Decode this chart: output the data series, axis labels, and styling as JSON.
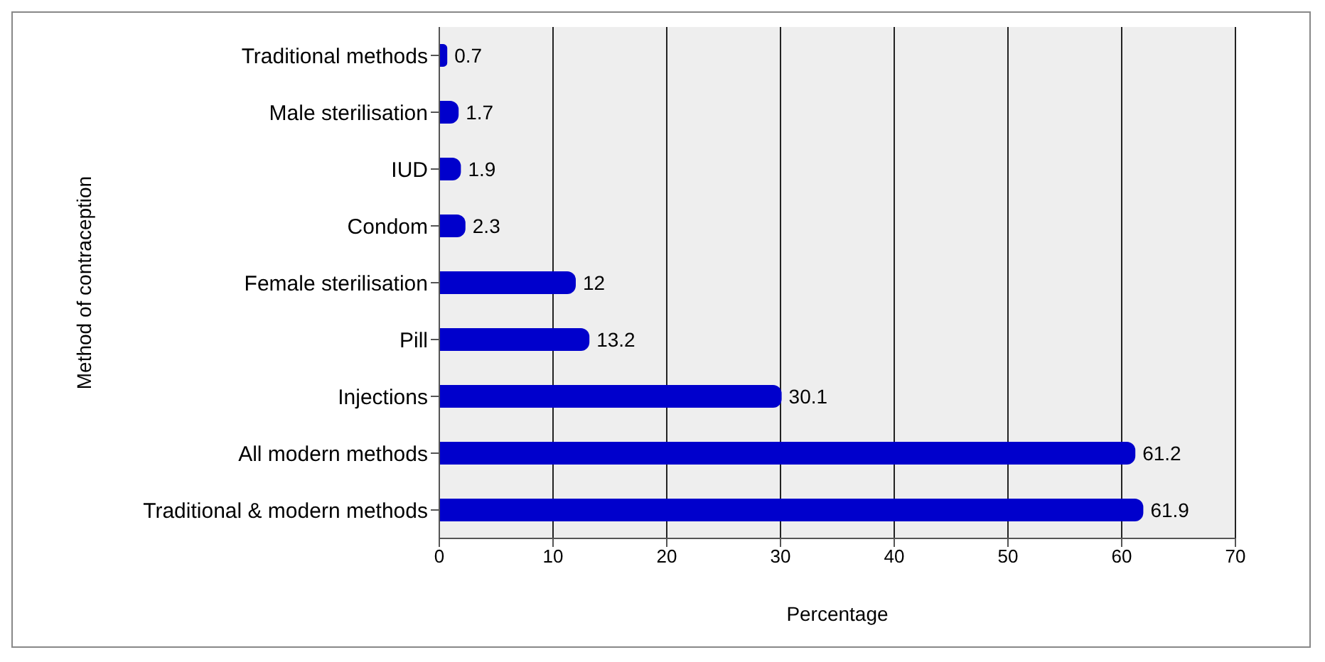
{
  "chart_data": {
    "type": "bar",
    "orientation": "horizontal",
    "xlabel": "Percentage",
    "ylabel": "Method of contraception",
    "categories": [
      "Traditional methods",
      "Male sterilisation",
      "IUD",
      "Condom",
      "Female sterilisation",
      "Pill",
      "Injections",
      "All modern methods",
      "Traditional & modern methods"
    ],
    "values": [
      0.7,
      1.7,
      1.9,
      2.3,
      12,
      13.2,
      30.1,
      61.2,
      61.9
    ],
    "color": "#0000cc",
    "xlim": [
      0,
      70
    ],
    "xticks": [
      0,
      10,
      20,
      30,
      40,
      50,
      60,
      70
    ],
    "grid": "x",
    "data_labels": true
  }
}
